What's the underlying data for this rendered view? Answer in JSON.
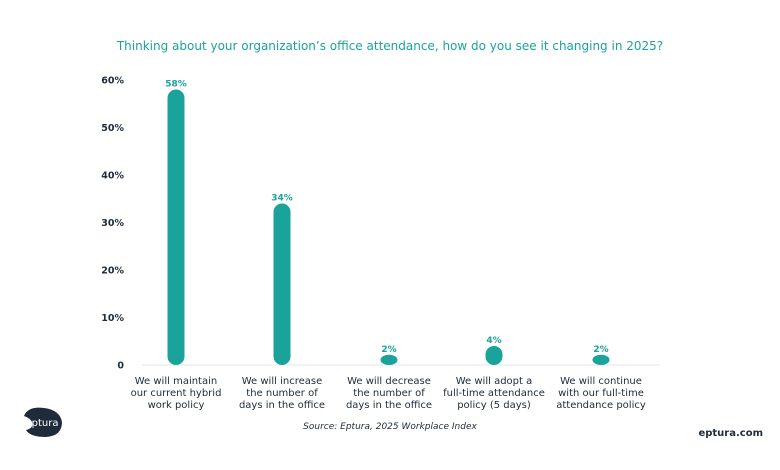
{
  "chart_data": {
    "type": "bar",
    "title": "Thinking about your organization’s office attendance, how do you see it changing in 2025?",
    "categories": [
      [
        "We will maintain",
        "our current hybrid",
        "work policy"
      ],
      [
        "We will increase",
        "the number of",
        "days in the office"
      ],
      [
        "We will decrease",
        "the number of",
        "days in the office"
      ],
      [
        "We will adopt a",
        "full-time attendance",
        "policy (5 days)"
      ],
      [
        "We will continue",
        "with our full-time",
        "attendance policy"
      ]
    ],
    "values": [
      58,
      34,
      2,
      4,
      2
    ],
    "value_labels": [
      "58%",
      "34%",
      "2%",
      "4%",
      "2%"
    ],
    "yticks": [
      0,
      10,
      20,
      30,
      40,
      50,
      60
    ],
    "ytick_labels": [
      "0",
      "10%",
      "20%",
      "30%",
      "40%",
      "50%",
      "60%"
    ],
    "ylim": [
      0,
      60
    ],
    "xlabel": "",
    "ylabel": "",
    "grid": false,
    "bar_color": "#1aa39a",
    "title_color": "#1aa39a"
  },
  "source": "Source: Eptura, 2025 Workplace Index",
  "logo_text": "eptura",
  "brand_url": "eptura.com"
}
